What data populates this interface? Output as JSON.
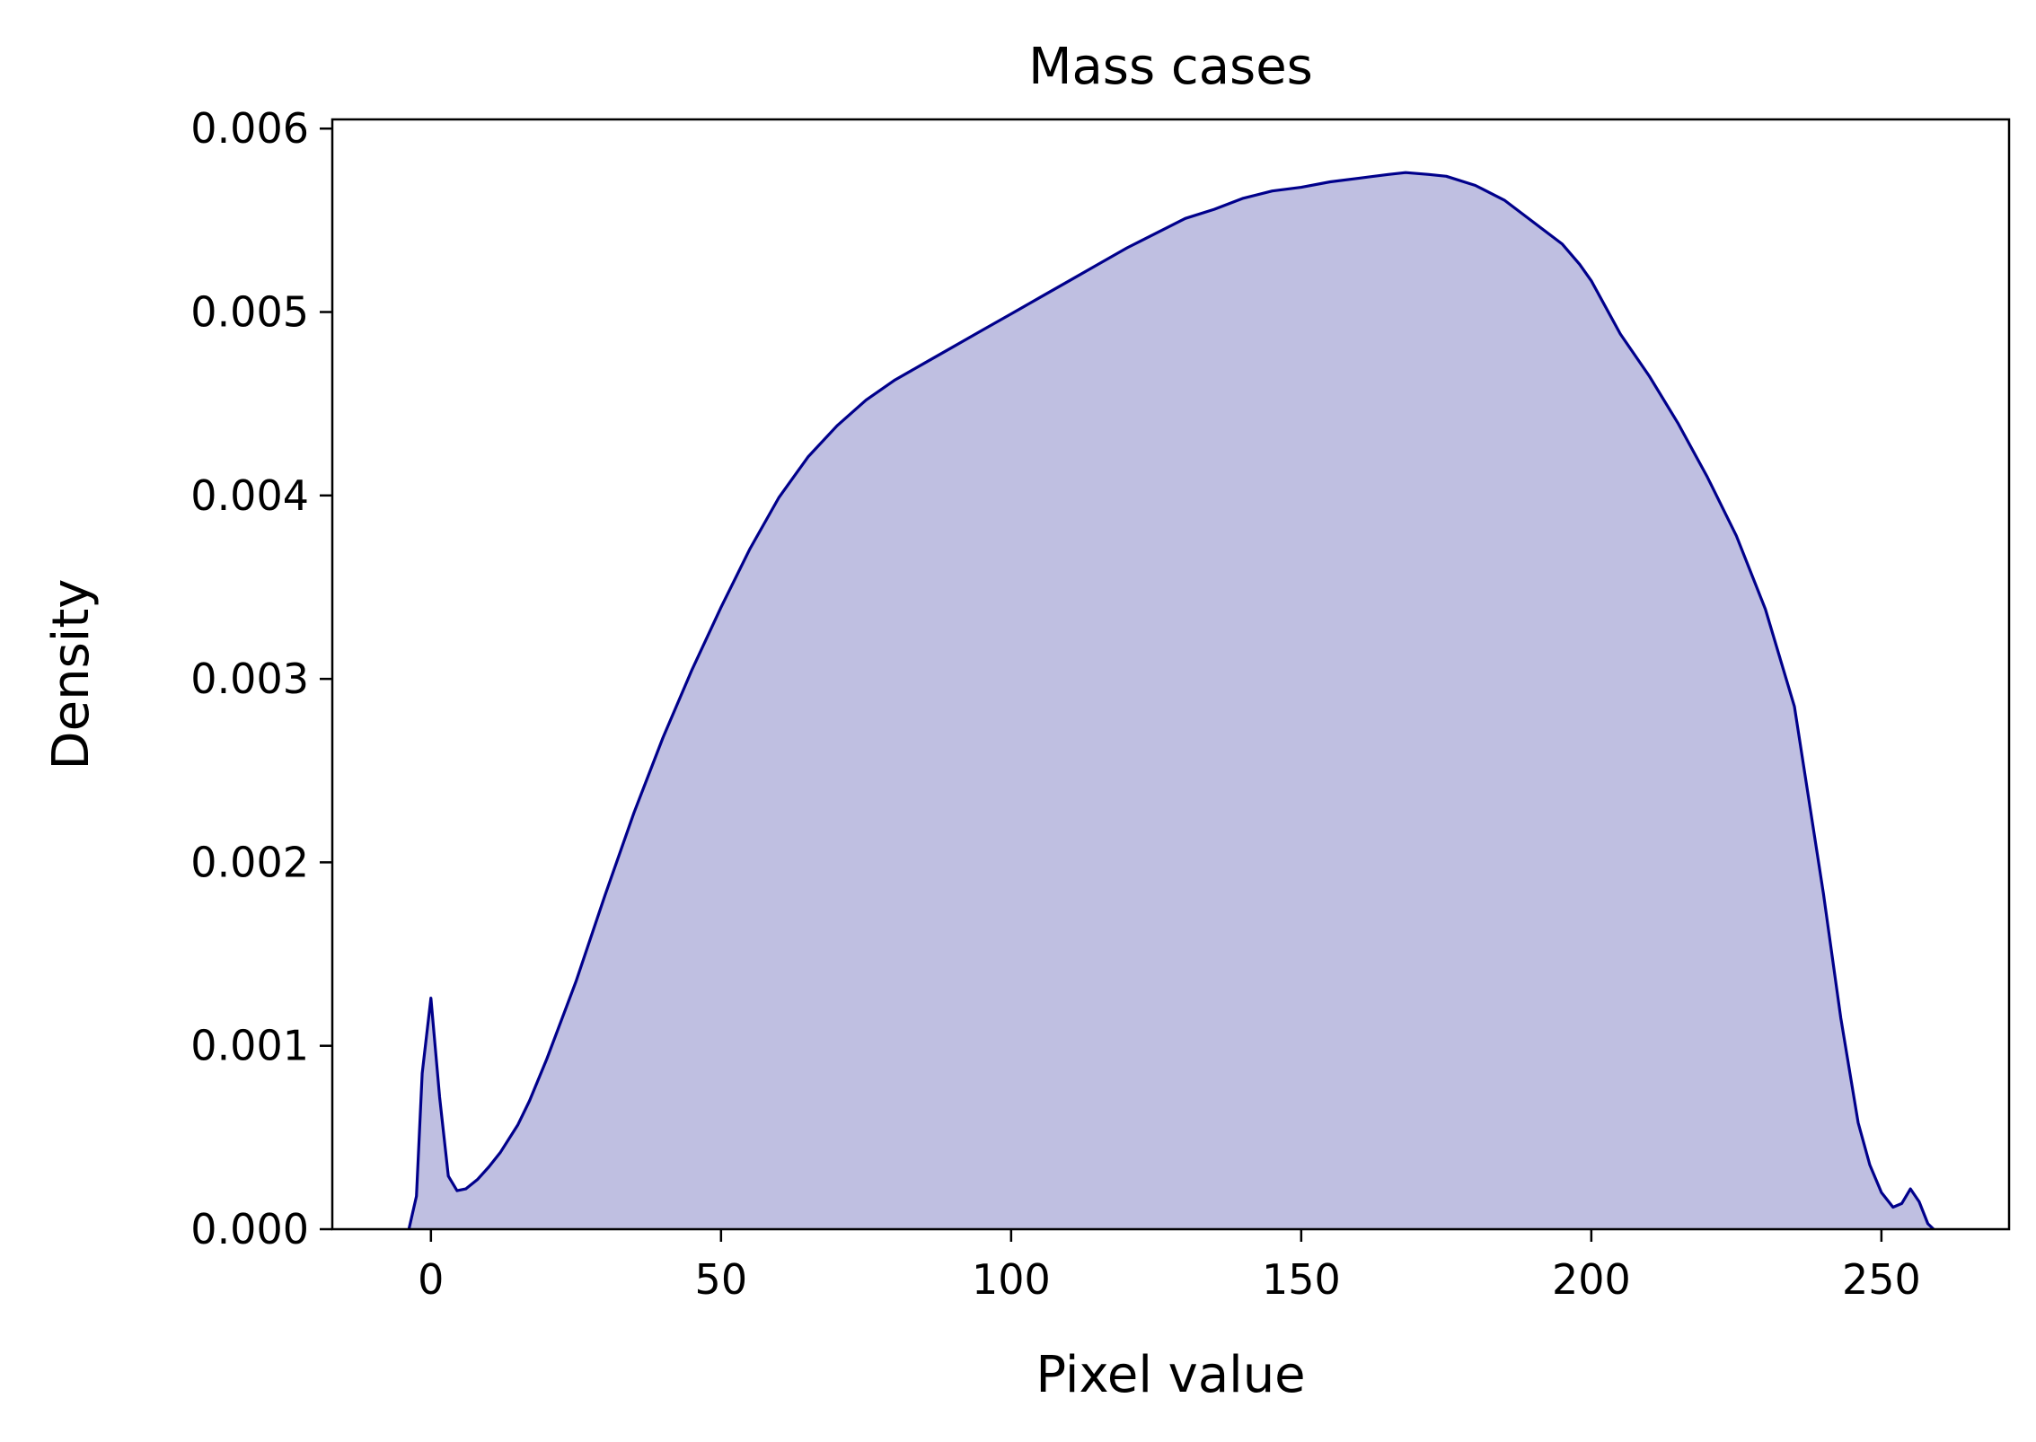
{
  "chart_data": {
    "type": "area",
    "title": "Mass cases",
    "xlabel": "Pixel value",
    "ylabel": "Density",
    "xlim": [
      -17,
      272
    ],
    "ylim": [
      0,
      0.00605
    ],
    "x_ticks": [
      0,
      50,
      100,
      150,
      200,
      250
    ],
    "x_tick_labels": [
      "0",
      "50",
      "100",
      "150",
      "200",
      "250"
    ],
    "y_ticks": [
      0,
      0.001,
      0.002,
      0.003,
      0.004,
      0.005,
      0.006
    ],
    "y_tick_labels": [
      "0.000",
      "0.001",
      "0.002",
      "0.003",
      "0.004",
      "0.005",
      "0.006"
    ],
    "grid": false,
    "colors": {
      "line": "#00008b",
      "fill": "#bfbfe1"
    },
    "series": [
      {
        "x": [
          -3.8,
          -2.5,
          -1.5,
          0,
          1.5,
          3,
          4.5,
          6,
          8,
          10,
          12,
          15,
          17,
          20,
          25,
          30,
          35,
          40,
          45,
          50,
          55,
          60,
          65,
          70,
          75,
          80,
          85,
          90,
          95,
          100,
          105,
          110,
          115,
          120,
          125,
          130,
          135,
          140,
          145,
          150,
          155,
          160,
          165,
          168,
          172,
          175,
          180,
          185,
          190,
          195,
          198,
          200,
          205,
          210,
          215,
          220,
          225,
          230,
          235,
          240,
          243,
          246,
          248,
          250,
          252,
          253.5,
          255,
          256.5,
          258,
          259
        ],
        "y": [
          0,
          0.00018,
          0.00085,
          0.00126,
          0.00072,
          0.00029,
          0.00021,
          0.00022,
          0.00027,
          0.00034,
          0.00042,
          0.00057,
          0.0007,
          0.00093,
          0.00135,
          0.00182,
          0.00227,
          0.00268,
          0.00305,
          0.00339,
          0.00371,
          0.00399,
          0.00421,
          0.00438,
          0.00452,
          0.00463,
          0.00472,
          0.00481,
          0.0049,
          0.00499,
          0.00508,
          0.00517,
          0.00526,
          0.00535,
          0.00543,
          0.00551,
          0.00556,
          0.00562,
          0.00566,
          0.00568,
          0.00571,
          0.00573,
          0.00575,
          0.00576,
          0.00575,
          0.00574,
          0.00569,
          0.00561,
          0.00549,
          0.00537,
          0.00526,
          0.00517,
          0.00488,
          0.00465,
          0.00439,
          0.0041,
          0.00378,
          0.00338,
          0.00285,
          0.00183,
          0.00115,
          0.00058,
          0.00035,
          0.0002,
          0.00012,
          0.00014,
          0.00022,
          0.00015,
          3e-05,
          0
        ]
      }
    ]
  }
}
